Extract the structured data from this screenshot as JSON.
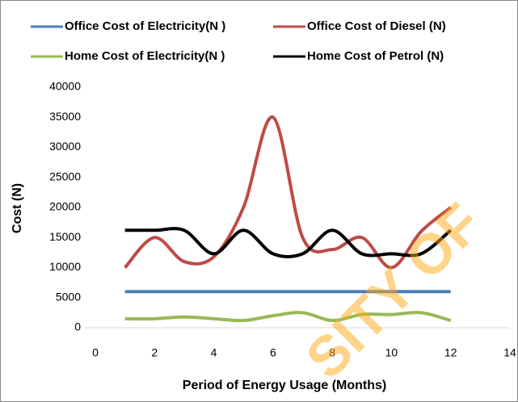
{
  "chart_data": {
    "type": "line",
    "y_label": "Cost  (N)",
    "x_label": "Period of Energy Usage (Months)",
    "watermark": "SITY OF",
    "series": [
      {
        "name": "Office  Cost of Electricity(N )",
        "color": "#4a7ebb",
        "x": [
          1,
          2,
          3,
          4,
          5,
          6,
          7,
          8,
          9,
          10,
          11,
          12
        ],
        "values": [
          6000,
          6000,
          6000,
          6000,
          6000,
          6000,
          6000,
          6000,
          6000,
          6000,
          6000,
          6000
        ]
      },
      {
        "name": "Office  Cost of Diesel (N)",
        "color": "#be4b48",
        "x": [
          1,
          2,
          3,
          4,
          5,
          6,
          7,
          8,
          9,
          10,
          11,
          12
        ],
        "values": [
          10000,
          15000,
          11000,
          11800,
          20000,
          35000,
          15000,
          13000,
          15000,
          10000,
          16000,
          20000
        ]
      },
      {
        "name": "Home  Cost of Electricity(N )",
        "color": "#98b954",
        "x": [
          1,
          2,
          3,
          4,
          5,
          6,
          7,
          8,
          9,
          10,
          11,
          12
        ],
        "values": [
          1500,
          1500,
          1800,
          1500,
          1200,
          2000,
          2500,
          1200,
          2200,
          2200,
          2500,
          1200
        ]
      },
      {
        "name": "Home  Cost of Petrol (N)",
        "color": "#000000",
        "x": [
          1,
          2,
          3,
          4,
          5,
          6,
          7,
          8,
          9,
          10,
          11,
          12
        ],
        "values": [
          16200,
          16200,
          16200,
          12300,
          16200,
          12300,
          12300,
          16200,
          12300,
          12300,
          12300,
          16200
        ]
      }
    ],
    "xlim": [
      0,
      14
    ],
    "xticks": [
      0,
      2,
      4,
      6,
      8,
      10,
      12,
      14
    ],
    "ylim": [
      0,
      40000
    ],
    "yticks": [
      0,
      5000,
      10000,
      15000,
      20000,
      25000,
      30000,
      35000,
      40000
    ],
    "smooth": true,
    "legend": "top"
  }
}
